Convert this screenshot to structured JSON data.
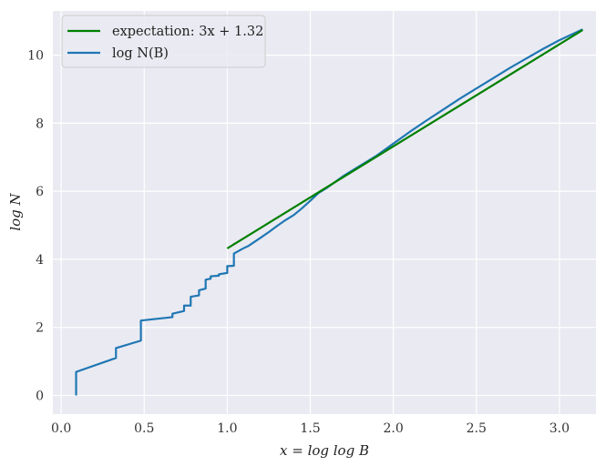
{
  "chart_data": {
    "type": "line",
    "xlabel": "x = log log B",
    "ylabel": "log N",
    "xlim": [
      -0.05,
      3.22
    ],
    "ylim": [
      -0.55,
      11.3
    ],
    "x_ticks": [
      "0.0",
      "0.5",
      "1.0",
      "1.5",
      "2.0",
      "2.5",
      "3.0"
    ],
    "y_ticks": [
      "0",
      "2",
      "4",
      "6",
      "8",
      "10"
    ],
    "grid": true,
    "legend_position": "top-left",
    "colors": {
      "background": "#eaeaf2",
      "grid": "#ffffff",
      "expectation": "#008000",
      "logN": "#1f77b4"
    },
    "series": [
      {
        "name": "expectation: 3x + 1.32",
        "kind": "line",
        "x": [
          1.0,
          3.14
        ],
        "y": [
          4.32,
          10.74
        ]
      },
      {
        "name": "log N(B)",
        "kind": "step",
        "x": [
          0.09,
          0.09,
          0.33,
          0.33,
          0.48,
          0.48,
          0.67,
          0.67,
          0.74,
          0.74,
          0.78,
          0.78,
          0.83,
          0.83,
          0.87,
          0.87,
          0.9,
          0.9,
          0.95,
          0.95,
          1.0,
          1.0,
          1.04,
          1.04,
          1.07,
          1.1,
          1.13,
          1.16,
          1.2,
          1.25,
          1.3,
          1.35,
          1.4,
          1.45,
          1.5,
          1.55,
          1.6,
          1.7,
          1.8,
          1.9,
          2.0,
          2.1,
          2.2,
          2.3,
          2.4,
          2.5,
          2.6,
          2.7,
          2.8,
          2.9,
          3.0,
          3.14
        ],
        "y": [
          0.0,
          0.69,
          1.1,
          1.39,
          1.61,
          2.2,
          2.3,
          2.4,
          2.48,
          2.64,
          2.64,
          2.9,
          2.94,
          3.09,
          3.14,
          3.4,
          3.43,
          3.5,
          3.52,
          3.56,
          3.6,
          3.8,
          3.81,
          4.17,
          4.25,
          4.33,
          4.4,
          4.5,
          4.63,
          4.8,
          4.98,
          5.15,
          5.3,
          5.5,
          5.72,
          5.95,
          6.1,
          6.45,
          6.75,
          7.05,
          7.4,
          7.75,
          8.08,
          8.4,
          8.72,
          9.02,
          9.32,
          9.62,
          9.9,
          10.18,
          10.44,
          10.76
        ]
      }
    ]
  }
}
